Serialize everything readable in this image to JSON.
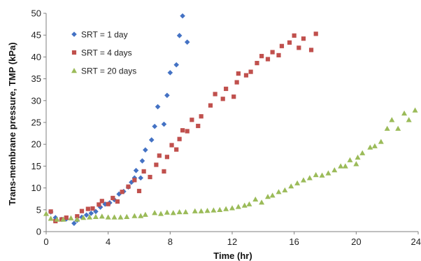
{
  "chart_data": {
    "type": "scatter",
    "title": "",
    "xlabel": "Time (hr)",
    "ylabel": "Trans-membrane pressure, TMP (kPa)",
    "xlim": [
      0,
      24
    ],
    "ylim": [
      0,
      50
    ],
    "xticks": [
      0,
      4,
      8,
      12,
      16,
      20,
      24
    ],
    "yticks": [
      0,
      5,
      10,
      15,
      20,
      25,
      30,
      35,
      40,
      45,
      50
    ],
    "grid": false,
    "legend_position": "top-left",
    "series": [
      {
        "name": "SRT = 1 day",
        "marker": "diamond",
        "color": "#4472C4",
        "points": [
          [
            0.3,
            4.5
          ],
          [
            0.6,
            3.2
          ],
          [
            1.0,
            2.8
          ],
          [
            1.3,
            2.9
          ],
          [
            1.8,
            1.9
          ],
          [
            2.0,
            2.6
          ],
          [
            2.3,
            3.3
          ],
          [
            2.6,
            3.8
          ],
          [
            2.9,
            4.2
          ],
          [
            3.2,
            4.6
          ],
          [
            3.5,
            5.6
          ],
          [
            3.8,
            6.3
          ],
          [
            4.1,
            6.6
          ],
          [
            4.4,
            7.3
          ],
          [
            4.7,
            8.6
          ],
          [
            5.0,
            9.2
          ],
          [
            5.3,
            10.2
          ],
          [
            5.5,
            11.3
          ],
          [
            5.7,
            12.3
          ],
          [
            5.8,
            14.0
          ],
          [
            6.1,
            12.3
          ],
          [
            6.2,
            16.2
          ],
          [
            6.4,
            18.7
          ],
          [
            6.8,
            21.0
          ],
          [
            7.0,
            24.1
          ],
          [
            7.2,
            28.6
          ],
          [
            7.6,
            24.6
          ],
          [
            7.8,
            31.2
          ],
          [
            8.0,
            36.4
          ],
          [
            8.4,
            38.2
          ],
          [
            8.6,
            44.9
          ],
          [
            8.8,
            49.4
          ],
          [
            9.1,
            43.4
          ]
        ]
      },
      {
        "name": "SRT = 4 days",
        "marker": "square",
        "color": "#C0504D",
        "points": [
          [
            0.3,
            4.6
          ],
          [
            0.6,
            2.4
          ],
          [
            1.0,
            2.8
          ],
          [
            1.3,
            3.2
          ],
          [
            2.0,
            3.5
          ],
          [
            2.3,
            4.7
          ],
          [
            2.7,
            5.2
          ],
          [
            3.0,
            5.3
          ],
          [
            3.4,
            6.2
          ],
          [
            3.6,
            7.0
          ],
          [
            4.0,
            6.3
          ],
          [
            4.3,
            7.7
          ],
          [
            4.6,
            6.9
          ],
          [
            4.9,
            9.1
          ],
          [
            5.3,
            10.3
          ],
          [
            5.7,
            11.8
          ],
          [
            6.0,
            9.3
          ],
          [
            6.3,
            13.8
          ],
          [
            6.7,
            12.5
          ],
          [
            7.1,
            15.3
          ],
          [
            7.3,
            17.4
          ],
          [
            7.6,
            13.8
          ],
          [
            7.8,
            17.1
          ],
          [
            8.1,
            19.8
          ],
          [
            8.4,
            18.8
          ],
          [
            8.6,
            21.2
          ],
          [
            8.8,
            23.2
          ],
          [
            9.1,
            23.0
          ],
          [
            9.4,
            25.6
          ],
          [
            9.8,
            24.2
          ],
          [
            10.0,
            26.4
          ],
          [
            10.6,
            28.9
          ],
          [
            10.9,
            31.5
          ],
          [
            11.4,
            30.4
          ],
          [
            11.6,
            32.7
          ],
          [
            12.1,
            30.9
          ],
          [
            12.3,
            34.2
          ],
          [
            12.4,
            36.2
          ],
          [
            12.9,
            35.8
          ],
          [
            13.2,
            36.6
          ],
          [
            13.6,
            38.6
          ],
          [
            13.9,
            40.2
          ],
          [
            14.3,
            39.5
          ],
          [
            14.6,
            41.1
          ],
          [
            15.0,
            40.4
          ],
          [
            15.2,
            42.5
          ],
          [
            15.7,
            43.3
          ],
          [
            16.0,
            44.9
          ],
          [
            16.3,
            42.1
          ],
          [
            16.6,
            44.2
          ],
          [
            17.1,
            41.6
          ],
          [
            17.4,
            45.3
          ]
        ]
      },
      {
        "name": "SRT = 20 days",
        "marker": "triangle",
        "color": "#9BBB59",
        "points": [
          [
            0.0,
            4.1
          ],
          [
            0.3,
            3.0
          ],
          [
            0.7,
            2.8
          ],
          [
            1.1,
            2.8
          ],
          [
            1.6,
            3.1
          ],
          [
            2.0,
            2.8
          ],
          [
            2.4,
            3.2
          ],
          [
            2.8,
            3.3
          ],
          [
            3.2,
            3.4
          ],
          [
            3.6,
            3.5
          ],
          [
            4.0,
            3.3
          ],
          [
            4.4,
            3.3
          ],
          [
            4.8,
            3.3
          ],
          [
            5.2,
            3.4
          ],
          [
            5.7,
            3.6
          ],
          [
            6.1,
            3.6
          ],
          [
            6.4,
            3.9
          ],
          [
            7.0,
            4.3
          ],
          [
            7.4,
            4.1
          ],
          [
            7.8,
            4.4
          ],
          [
            8.2,
            4.3
          ],
          [
            8.6,
            4.5
          ],
          [
            9.0,
            4.5
          ],
          [
            9.6,
            4.7
          ],
          [
            10.0,
            4.7
          ],
          [
            10.4,
            4.8
          ],
          [
            10.8,
            4.9
          ],
          [
            11.2,
            5.0
          ],
          [
            11.6,
            5.2
          ],
          [
            12.0,
            5.4
          ],
          [
            12.4,
            5.7
          ],
          [
            12.8,
            6.0
          ],
          [
            13.1,
            6.3
          ],
          [
            13.5,
            7.4
          ],
          [
            13.9,
            6.7
          ],
          [
            14.3,
            8.0
          ],
          [
            14.6,
            8.3
          ],
          [
            15.0,
            9.1
          ],
          [
            15.4,
            9.5
          ],
          [
            15.8,
            10.4
          ],
          [
            16.2,
            11.1
          ],
          [
            16.6,
            11.8
          ],
          [
            17.0,
            12.3
          ],
          [
            17.4,
            13.0
          ],
          [
            17.8,
            12.9
          ],
          [
            18.2,
            13.4
          ],
          [
            18.6,
            14.1
          ],
          [
            19.0,
            15.0
          ],
          [
            19.3,
            15.0
          ],
          [
            19.6,
            16.4
          ],
          [
            20.0,
            15.5
          ],
          [
            20.1,
            17.0
          ],
          [
            20.4,
            18.0
          ],
          [
            20.9,
            19.3
          ],
          [
            21.2,
            19.6
          ],
          [
            21.6,
            20.6
          ],
          [
            22.0,
            23.6
          ],
          [
            22.3,
            25.6
          ],
          [
            22.7,
            23.6
          ],
          [
            23.1,
            27.1
          ],
          [
            23.4,
            25.6
          ],
          [
            23.8,
            27.8
          ]
        ]
      }
    ]
  }
}
